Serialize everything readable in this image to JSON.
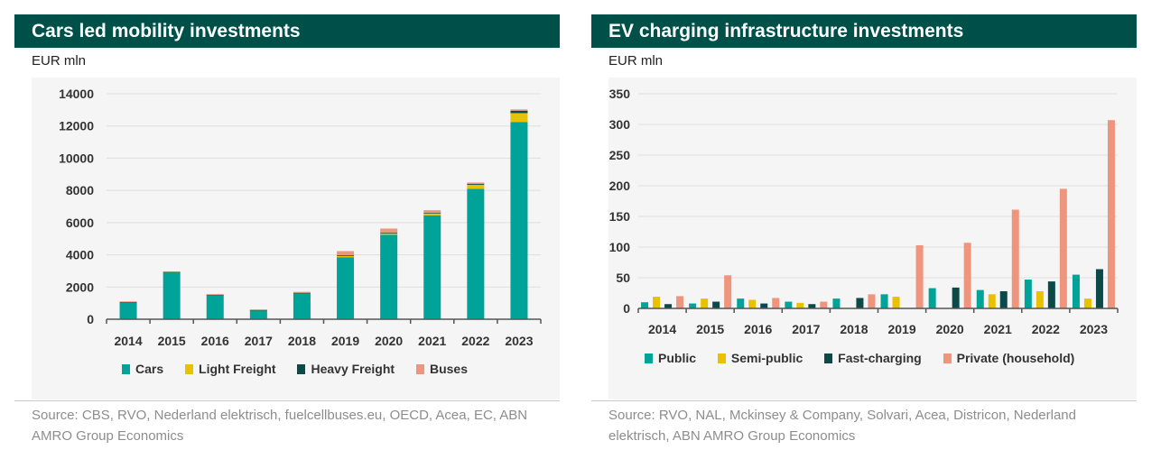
{
  "colors": {
    "header_bg": "#00504a",
    "cars": "#00a397",
    "light_freight": "#e8c100",
    "heavy_freight": "#0b4a48",
    "buses": "#ef957d",
    "public": "#00a397",
    "semi_public": "#e8c100",
    "fast_charging": "#0b4a48",
    "private_household": "#ef957d"
  },
  "left": {
    "title": "Cars led mobility investments",
    "unit": "EUR mln",
    "source": "Source: CBS, RVO, Nederland elektrisch, fuelcellbuses.eu, OECD, Acea, EC, ABN AMRO Group Economics",
    "legend": [
      "Cars",
      "Light Freight",
      "Heavy Freight",
      "Buses"
    ]
  },
  "right": {
    "title": "EV charging infrastructure investments",
    "unit": "EUR mln",
    "source": "Source: RVO, NAL, Mckinsey & Company, Solvari, Acea, Districon, Nederland elektrisch, ABN AMRO Group Economics",
    "legend": [
      "Public",
      "Semi-public",
      "Fast-charging",
      "Private (household)"
    ]
  },
  "chart_data": [
    {
      "type": "bar",
      "stacked": true,
      "title": "Cars led mobility investments",
      "ylabel": "EUR mln",
      "categories": [
        "2014",
        "2015",
        "2016",
        "2017",
        "2018",
        "2019",
        "2020",
        "2021",
        "2022",
        "2023"
      ],
      "ylim": [
        0,
        14000
      ],
      "yticks": [
        0,
        2000,
        4000,
        6000,
        8000,
        10000,
        12000,
        14000
      ],
      "grid": true,
      "legend_position": "bottom",
      "series": [
        {
          "name": "Cars",
          "color": "#00a397",
          "values": [
            1050,
            2900,
            1500,
            550,
            1600,
            3850,
            5250,
            6450,
            8100,
            12250
          ]
        },
        {
          "name": "Light Freight",
          "color": "#e8c100",
          "values": [
            20,
            30,
            20,
            20,
            30,
            100,
            100,
            120,
            250,
            550
          ]
        },
        {
          "name": "Heavy Freight",
          "color": "#0b4a48",
          "values": [
            10,
            10,
            10,
            10,
            10,
            30,
            30,
            50,
            60,
            150
          ]
        },
        {
          "name": "Buses",
          "color": "#ef957d",
          "values": [
            30,
            30,
            30,
            30,
            60,
            250,
            250,
            150,
            80,
            80
          ]
        }
      ]
    },
    {
      "type": "bar",
      "stacked": false,
      "title": "EV charging infrastructure investments",
      "ylabel": "EUR mln",
      "categories": [
        "2014",
        "2015",
        "2016",
        "2017",
        "2018",
        "2019",
        "2020",
        "2021",
        "2022",
        "2023"
      ],
      "ylim": [
        0,
        350
      ],
      "yticks": [
        0,
        50,
        100,
        150,
        200,
        250,
        300,
        350
      ],
      "grid": true,
      "legend_position": "bottom",
      "series": [
        {
          "name": "Public",
          "color": "#00a397",
          "values": [
            10,
            8,
            16,
            11,
            16,
            23,
            33,
            30,
            47,
            55
          ]
        },
        {
          "name": "Semi-public",
          "color": "#e8c100",
          "values": [
            19,
            16,
            14,
            9,
            0,
            19,
            0,
            23,
            28,
            16
          ]
        },
        {
          "name": "Fast-charging",
          "color": "#0b4a48",
          "values": [
            7,
            11,
            8,
            7,
            17,
            0,
            34,
            28,
            44,
            64
          ]
        },
        {
          "name": "Private (household)",
          "color": "#ef957d",
          "values": [
            20,
            54,
            17,
            11,
            23,
            103,
            107,
            161,
            195,
            307
          ]
        }
      ]
    }
  ]
}
